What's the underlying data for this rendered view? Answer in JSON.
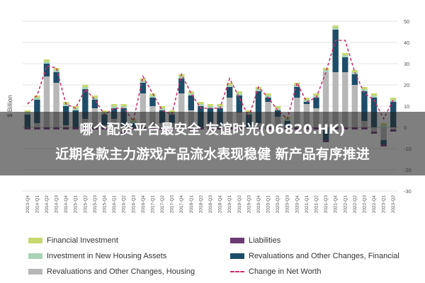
{
  "chart_data": {
    "type": "bar",
    "ylabel": "$ Billion",
    "ylim": [
      -30,
      50
    ],
    "yticks": [
      -30,
      -20,
      -10,
      0,
      10,
      20,
      30,
      40,
      50
    ],
    "categories": [
      "2013-Q4",
      "2014-Q1",
      "2014-Q2",
      "2014-Q3",
      "2014-Q4",
      "2015-Q1",
      "2015-Q2",
      "2015-Q3",
      "2015-Q4",
      "2016-Q1",
      "2016-Q2",
      "2016-Q3",
      "2016-Q4",
      "2017-Q1",
      "2017-Q2",
      "2017-Q3",
      "2017-Q4",
      "2018-Q1",
      "2018-Q2",
      "2018-Q3",
      "2018-Q4",
      "2019-Q1",
      "2019-Q2",
      "2019-Q3",
      "2019-Q4",
      "2020-Q1",
      "2020-Q2",
      "2020-Q3",
      "2020-Q4",
      "2021-Q1",
      "2021-Q2",
      "2021-Q3",
      "2021-Q4",
      "2022-Q1",
      "2022-Q2",
      "2022-Q3",
      "2022-Q4",
      "2023-Q1",
      "2023-Q2"
    ],
    "series": [
      {
        "name": "Revaluations and Other Changes, Housing",
        "color": "#b7b7b7",
        "values": [
          0,
          2,
          24,
          21,
          1,
          0,
          4,
          9,
          1,
          4,
          -2,
          0,
          16,
          10,
          2,
          2,
          16,
          8,
          0,
          2,
          1,
          14,
          7,
          0,
          2,
          12,
          5,
          0,
          14,
          11,
          9,
          26,
          26,
          26,
          20,
          3,
          -2,
          -6,
          -1
        ]
      },
      {
        "name": "Revaluations and Other Changes, Financial",
        "color": "#1d4d68",
        "values": [
          6,
          11,
          6,
          5,
          9,
          8,
          14,
          4,
          5,
          5,
          9,
          2,
          5,
          4,
          6,
          4,
          7,
          7,
          10,
          7,
          8,
          5,
          8,
          6,
          15,
          2,
          3,
          3,
          5,
          1,
          5,
          -6,
          20,
          7,
          5,
          14,
          14,
          -2,
          12
        ]
      },
      {
        "name": "Investment in New Housing Assets",
        "color": "#a8d4b6",
        "values": [
          1,
          1,
          1,
          1,
          1,
          1,
          1,
          1,
          1,
          1,
          1,
          1,
          1,
          1,
          1,
          1,
          1,
          1,
          1,
          1,
          1,
          1,
          1,
          1,
          1,
          1,
          1,
          1,
          1,
          1,
          1,
          1,
          1,
          1,
          1,
          1,
          1,
          1,
          1
        ]
      },
      {
        "name": "Financial Investment",
        "color": "#c8d86e",
        "values": [
          1,
          1,
          1,
          1,
          1,
          1,
          1,
          1,
          1,
          1,
          1,
          1,
          1,
          1,
          1,
          1,
          1,
          1,
          1,
          1,
          1,
          1,
          1,
          1,
          1,
          1,
          1,
          1,
          1,
          1,
          1,
          1,
          1,
          1,
          1,
          1,
          1,
          1,
          1
        ]
      },
      {
        "name": "Liabilities",
        "color": "#6b3a73",
        "values": [
          -1,
          -1,
          -1,
          -1,
          -1,
          -1,
          -1,
          -1,
          -1,
          -1,
          -1,
          -1,
          -1,
          -1,
          -1,
          -1,
          -1,
          -1,
          -1,
          -1,
          -1,
          -1,
          -1,
          -1,
          -1,
          -1,
          -1,
          -1,
          -1,
          -1,
          -1,
          -1,
          -1,
          -1,
          -1,
          -1,
          -1,
          -1,
          -1
        ]
      }
    ],
    "line": {
      "name": "Change in Net Worth",
      "color": "#c8326e",
      "values": [
        11,
        15,
        29,
        28,
        11,
        9,
        18,
        13,
        6,
        9,
        9,
        3,
        24,
        16,
        8,
        6,
        25,
        16,
        9,
        9,
        9,
        23,
        14,
        5,
        19,
        14,
        8,
        4,
        21,
        12,
        14,
        26,
        41,
        41,
        26,
        16,
        13,
        4,
        13
      ]
    },
    "legend_position": "bottom",
    "grid": true
  },
  "legend": {
    "financial_investment": "Financial Investment",
    "liabilities": "Liabilities",
    "investment_housing": "Investment in New Housing Assets",
    "reval_financial": "Revaluations and Other Changes, Financial",
    "reval_housing": "Revaluations and Other Changes, Housing",
    "net_worth": "Change in Net Worth"
  },
  "overlay": {
    "headline_1": "哪个配资平台最安全 友谊时光(06820.HK)",
    "headline_2": "近期各款主力游戏产品流水表现稳健 新产品有序推进"
  }
}
